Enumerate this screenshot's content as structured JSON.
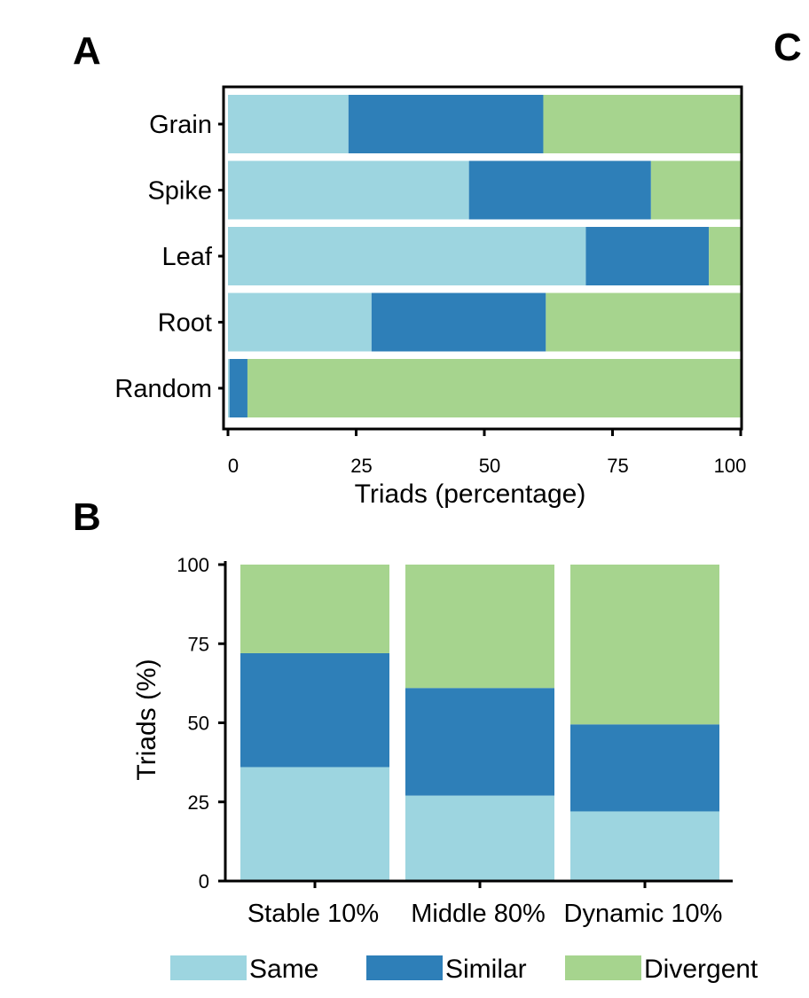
{
  "panel_letters": [
    "A",
    "B",
    "C"
  ],
  "colors": {
    "same": "#9dd5e0",
    "similar": "#2e7fb8",
    "divergent": "#a6d48e",
    "axis": "#000000"
  },
  "legend": {
    "items": [
      "Same",
      "Similar",
      "Divergent"
    ]
  },
  "chart_data": [
    {
      "type": "bar",
      "orientation": "horizontal",
      "stacked": true,
      "panel": "A",
      "categories": [
        "Grain",
        "Spike",
        "Leaf",
        "Root",
        "Random"
      ],
      "series": [
        {
          "name": "Same",
          "values": [
            23.5,
            47,
            69.8,
            28,
            0.3
          ]
        },
        {
          "name": "Similar",
          "values": [
            38,
            35.5,
            24,
            34,
            3.5
          ]
        },
        {
          "name": "Divergent",
          "values": [
            38.5,
            17.5,
            6.2,
            38,
            96.2
          ]
        }
      ],
      "xlabel": "Triads (percentage)",
      "xlim": [
        0,
        100
      ],
      "xticks": [
        0,
        25,
        50,
        75,
        100
      ],
      "legend": "bottom"
    },
    {
      "type": "bar",
      "orientation": "vertical",
      "stacked": true,
      "panel": "B",
      "categories": [
        "Stable 10%",
        "Middle 80%",
        "Dynamic 10%"
      ],
      "series": [
        {
          "name": "Same",
          "values": [
            36,
            27,
            22
          ]
        },
        {
          "name": "Similar",
          "values": [
            36,
            34,
            27.5
          ]
        },
        {
          "name": "Divergent",
          "values": [
            28,
            39,
            50.5
          ]
        }
      ],
      "ylabel": "Triads (%)",
      "ylim": [
        0,
        100
      ],
      "yticks": [
        0,
        25,
        50,
        75,
        100
      ],
      "legend": "bottom"
    }
  ]
}
